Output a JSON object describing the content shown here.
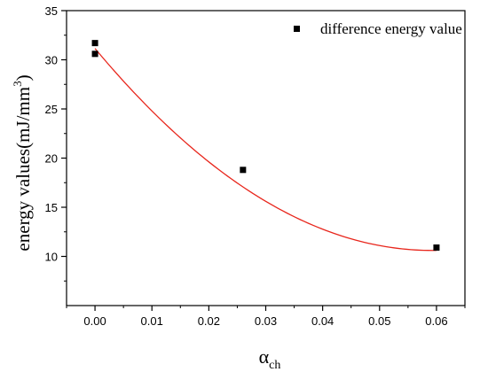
{
  "chart_data": {
    "type": "scatter",
    "xlabel": "α",
    "xlabel_sub": "ch",
    "ylabel": "energy values(mJ/mm",
    "ylabel_sup": "3",
    "ylabel_close": ")",
    "xlim": [
      -0.005,
      0.065
    ],
    "ylim": [
      5,
      35
    ],
    "x_ticks": [
      0.0,
      0.01,
      0.02,
      0.03,
      0.04,
      0.05,
      0.06
    ],
    "x_tick_labels": [
      "0.00",
      "0.01",
      "0.02",
      "0.03",
      "0.04",
      "0.05",
      "0.06"
    ],
    "y_ticks": [
      10,
      15,
      20,
      25,
      30,
      35
    ],
    "y_tick_labels": [
      "10",
      "15",
      "20",
      "25",
      "30",
      "35"
    ],
    "legend_position": "top-right",
    "series": [
      {
        "name": "difference energy value",
        "marker": "square",
        "color": "#000000",
        "points": [
          {
            "x": 0.0,
            "y": 31.7
          },
          {
            "x": 0.0,
            "y": 30.6
          },
          {
            "x": 0.026,
            "y": 18.8
          },
          {
            "x": 0.06,
            "y": 10.9
          }
        ]
      }
    ],
    "fit_curve": {
      "color": "#e8261c",
      "type": "polynomial",
      "coefficients": [
        31.15,
        -694.07,
        5863.2
      ],
      "x_range": [
        0.0,
        0.06
      ]
    },
    "grid": false
  }
}
